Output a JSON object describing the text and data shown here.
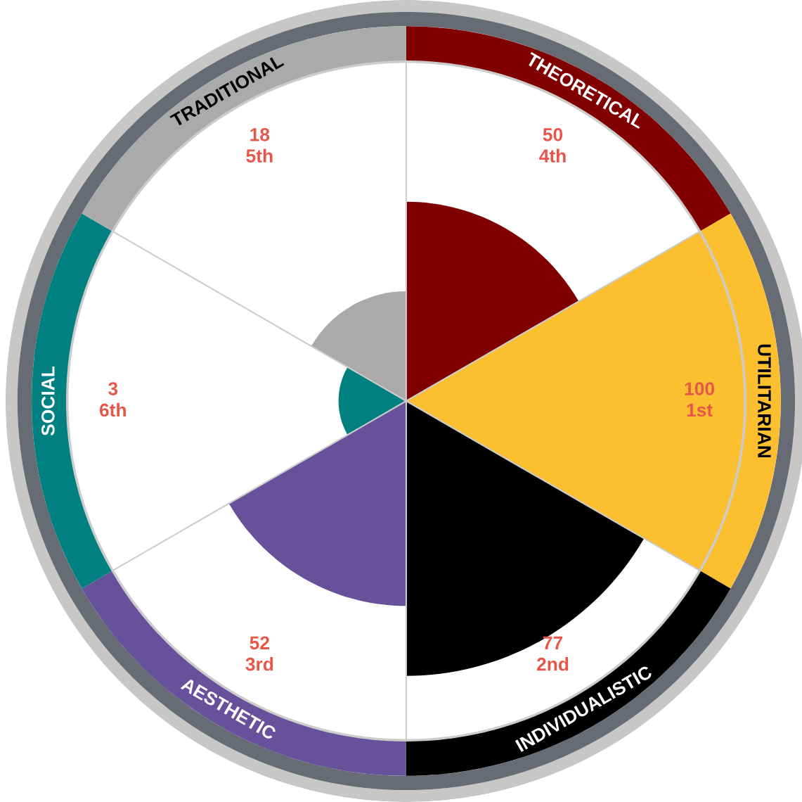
{
  "chart_data": {
    "type": "other",
    "categories": [
      "THEORETICAL",
      "UTILITARIAN",
      "INDIVIDUALISTIC",
      "AESTHETIC",
      "SOCIAL",
      "TRADITIONAL"
    ],
    "values": [
      50,
      100,
      77,
      52,
      3,
      18
    ],
    "colors": [
      "#800000",
      "#fcbf30",
      "#000000",
      "#67519a",
      "#008080",
      "#aaaaaa"
    ],
    "value_labels": [
      "50\n4th",
      "100\n1st",
      "77\n2nd",
      "52\n3rd",
      "3\n6th",
      "18\n5th"
    ]
  }
}
